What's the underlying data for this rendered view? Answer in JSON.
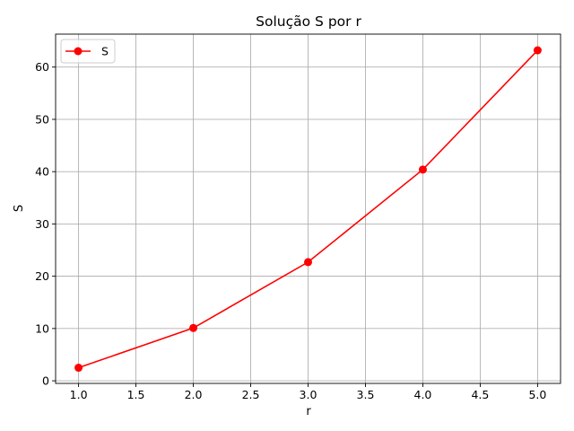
{
  "chart_data": {
    "type": "line",
    "title": "Solução S por r",
    "xlabel": "r",
    "ylabel": "S",
    "xlim": [
      0.8,
      5.2
    ],
    "ylim": [
      -0.5,
      66.3
    ],
    "xticks": [
      1.0,
      1.5,
      2.0,
      2.5,
      3.0,
      3.5,
      4.0,
      4.5,
      5.0
    ],
    "xtick_labels": [
      "1.0",
      "1.5",
      "2.0",
      "2.5",
      "3.0",
      "3.5",
      "4.0",
      "4.5",
      "5.0"
    ],
    "yticks": [
      0,
      10,
      20,
      30,
      40,
      50,
      60
    ],
    "ytick_labels": [
      "0",
      "10",
      "20",
      "30",
      "40",
      "50",
      "60"
    ],
    "grid": true,
    "legend": {
      "position": "top-left"
    },
    "series": [
      {
        "name": "S",
        "color": "#ff0000",
        "marker": "circle",
        "x": [
          1.0,
          2.0,
          3.0,
          4.0,
          5.0
        ],
        "y": [
          2.5,
          10.1,
          22.7,
          40.4,
          63.2
        ]
      }
    ]
  }
}
